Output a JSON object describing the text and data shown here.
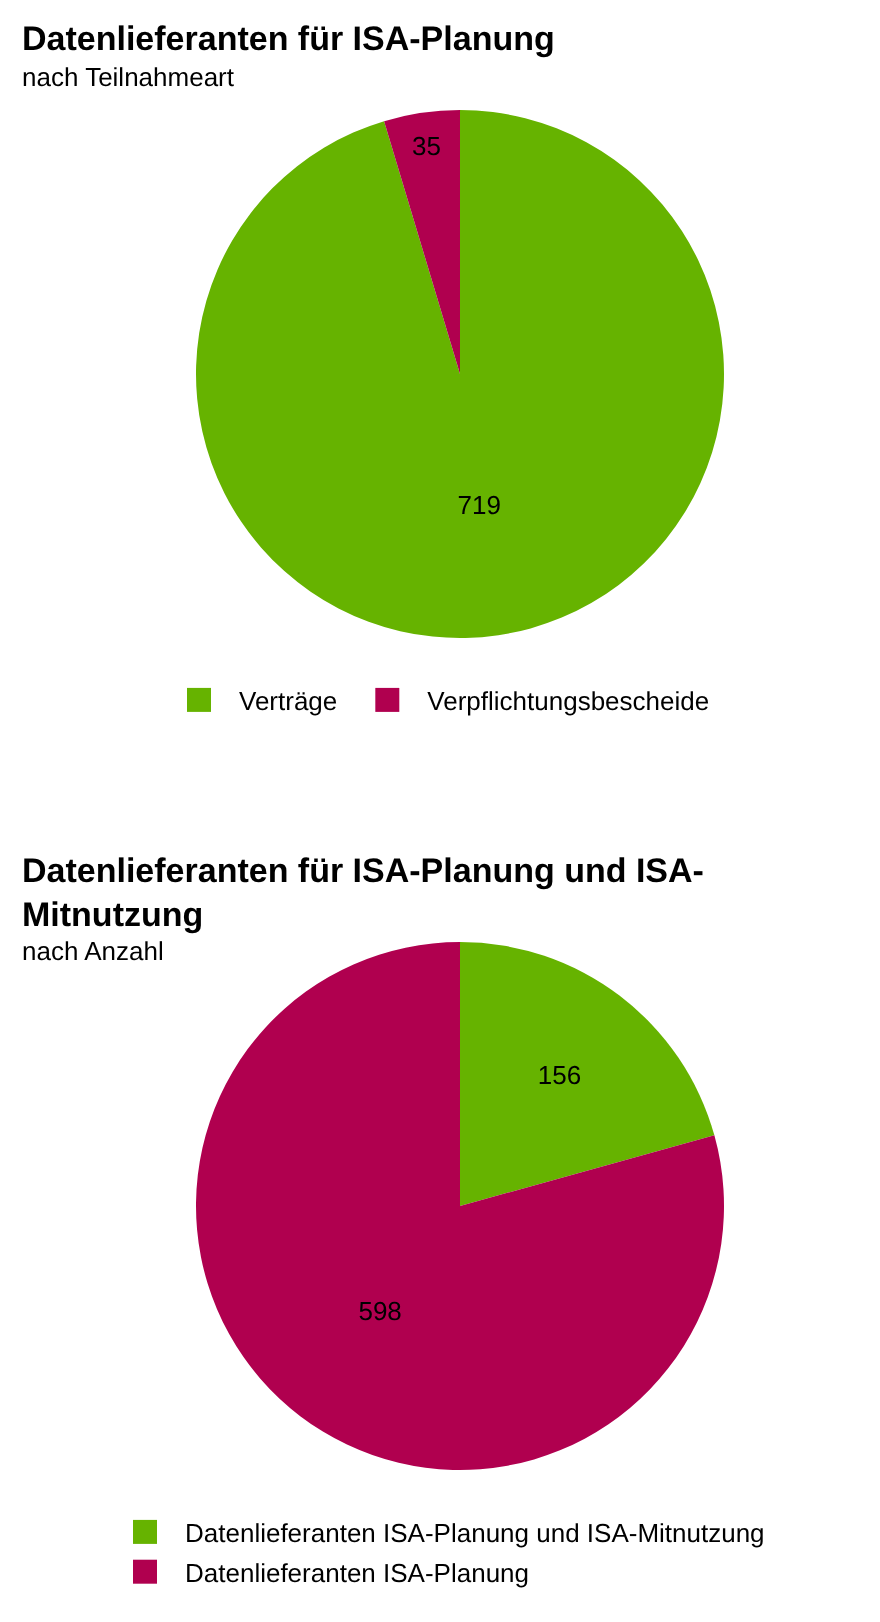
{
  "chart_data": [
    {
      "type": "pie",
      "title": "Datenlieferanten für ISA-Planung",
      "subtitle": "nach Teilnahmeart",
      "categories": [
        "Verträge",
        "Verpflichtungsbescheide"
      ],
      "values": [
        719,
        35
      ],
      "colors": [
        "#66b300",
        "#b0004f"
      ],
      "data_labels": true,
      "legend": "bottom"
    },
    {
      "type": "pie",
      "title": "Datenlieferanten für ISA-Planung und ISA-Mitnutzung",
      "subtitle": "nach Anzahl",
      "categories": [
        "Datenlieferanten ISA-Planung und ISA-Mitnutzung",
        "Datenlieferanten ISA-Planung"
      ],
      "values": [
        156,
        598
      ],
      "colors": [
        "#66b300",
        "#b0004f"
      ],
      "data_labels": true,
      "legend": "bottom"
    }
  ]
}
